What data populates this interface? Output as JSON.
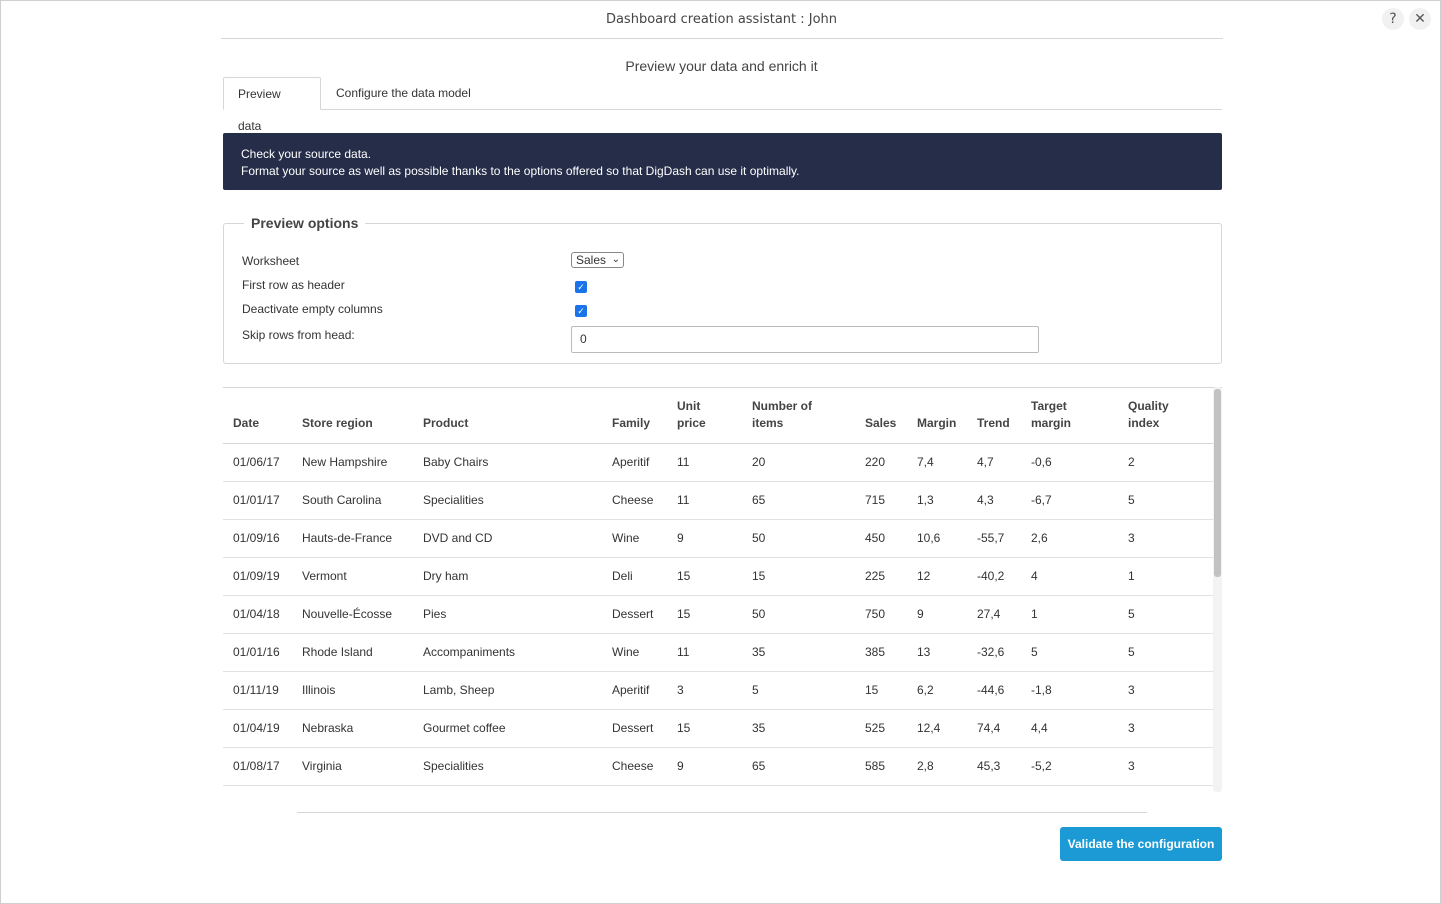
{
  "window": {
    "title": "Dashboard creation assistant : John",
    "help_icon": "?",
    "close_icon": "✕"
  },
  "subtitle": "Preview your data and enrich it",
  "tabs": [
    {
      "label": "Preview data",
      "active": true
    },
    {
      "label": "Configure the data model",
      "active": false
    }
  ],
  "banner": {
    "line1": "Check your source data.",
    "line2": "Format your source as well as possible thanks to the options offered so that DigDash can use it optimally."
  },
  "preview_options": {
    "legend": "Preview options",
    "worksheet_label": "Worksheet",
    "worksheet_value": "Sales",
    "first_row_label": "First row as header",
    "first_row_checked": true,
    "deactivate_label": "Deactivate empty columns",
    "deactivate_checked": true,
    "skip_rows_label": "Skip rows from head:",
    "skip_rows_value": "0"
  },
  "table": {
    "headers": [
      [
        "Date"
      ],
      [
        "Store region"
      ],
      [
        "Product"
      ],
      [
        "Family"
      ],
      [
        "Unit",
        "price"
      ],
      [
        "Number of",
        "items"
      ],
      [
        "Sales"
      ],
      [
        "Margin"
      ],
      [
        "Trend"
      ],
      [
        "Target",
        "margin"
      ],
      [
        "Quality",
        "index"
      ]
    ],
    "rows": [
      [
        "01/06/17",
        "New Hampshire",
        "Baby Chairs",
        "Aperitif",
        "11",
        "20",
        "220",
        "7,4",
        "4,7",
        "-0,6",
        "2"
      ],
      [
        "01/01/17",
        "South Carolina",
        "Specialities",
        "Cheese",
        "11",
        "65",
        "715",
        "1,3",
        "4,3",
        "-6,7",
        "5"
      ],
      [
        "01/09/16",
        "Hauts-de-France",
        "DVD and CD",
        "Wine",
        "9",
        "50",
        "450",
        "10,6",
        "-55,7",
        "2,6",
        "3"
      ],
      [
        "01/09/19",
        "Vermont",
        "Dry ham",
        "Deli",
        "15",
        "15",
        "225",
        "12",
        "-40,2",
        "4",
        "1"
      ],
      [
        "01/04/18",
        "Nouvelle-Écosse",
        "Pies",
        "Dessert",
        "15",
        "50",
        "750",
        "9",
        "27,4",
        "1",
        "5"
      ],
      [
        "01/01/16",
        "Rhode Island",
        "Accompaniments",
        "Wine",
        "11",
        "35",
        "385",
        "13",
        "-32,6",
        "5",
        "5"
      ],
      [
        "01/11/19",
        "Illinois",
        "Lamb, Sheep",
        "Aperitif",
        "3",
        "5",
        "15",
        "6,2",
        "-44,6",
        "-1,8",
        "3"
      ],
      [
        "01/04/19",
        "Nebraska",
        "Gourmet coffee",
        "Dessert",
        "15",
        "35",
        "525",
        "12,4",
        "74,4",
        "4,4",
        "3"
      ],
      [
        "01/08/17",
        "Virginia",
        "Specialities",
        "Cheese",
        "9",
        "65",
        "585",
        "2,8",
        "45,3",
        "-5,2",
        "3"
      ]
    ]
  },
  "footer": {
    "validate_label": "Validate the configuration"
  }
}
